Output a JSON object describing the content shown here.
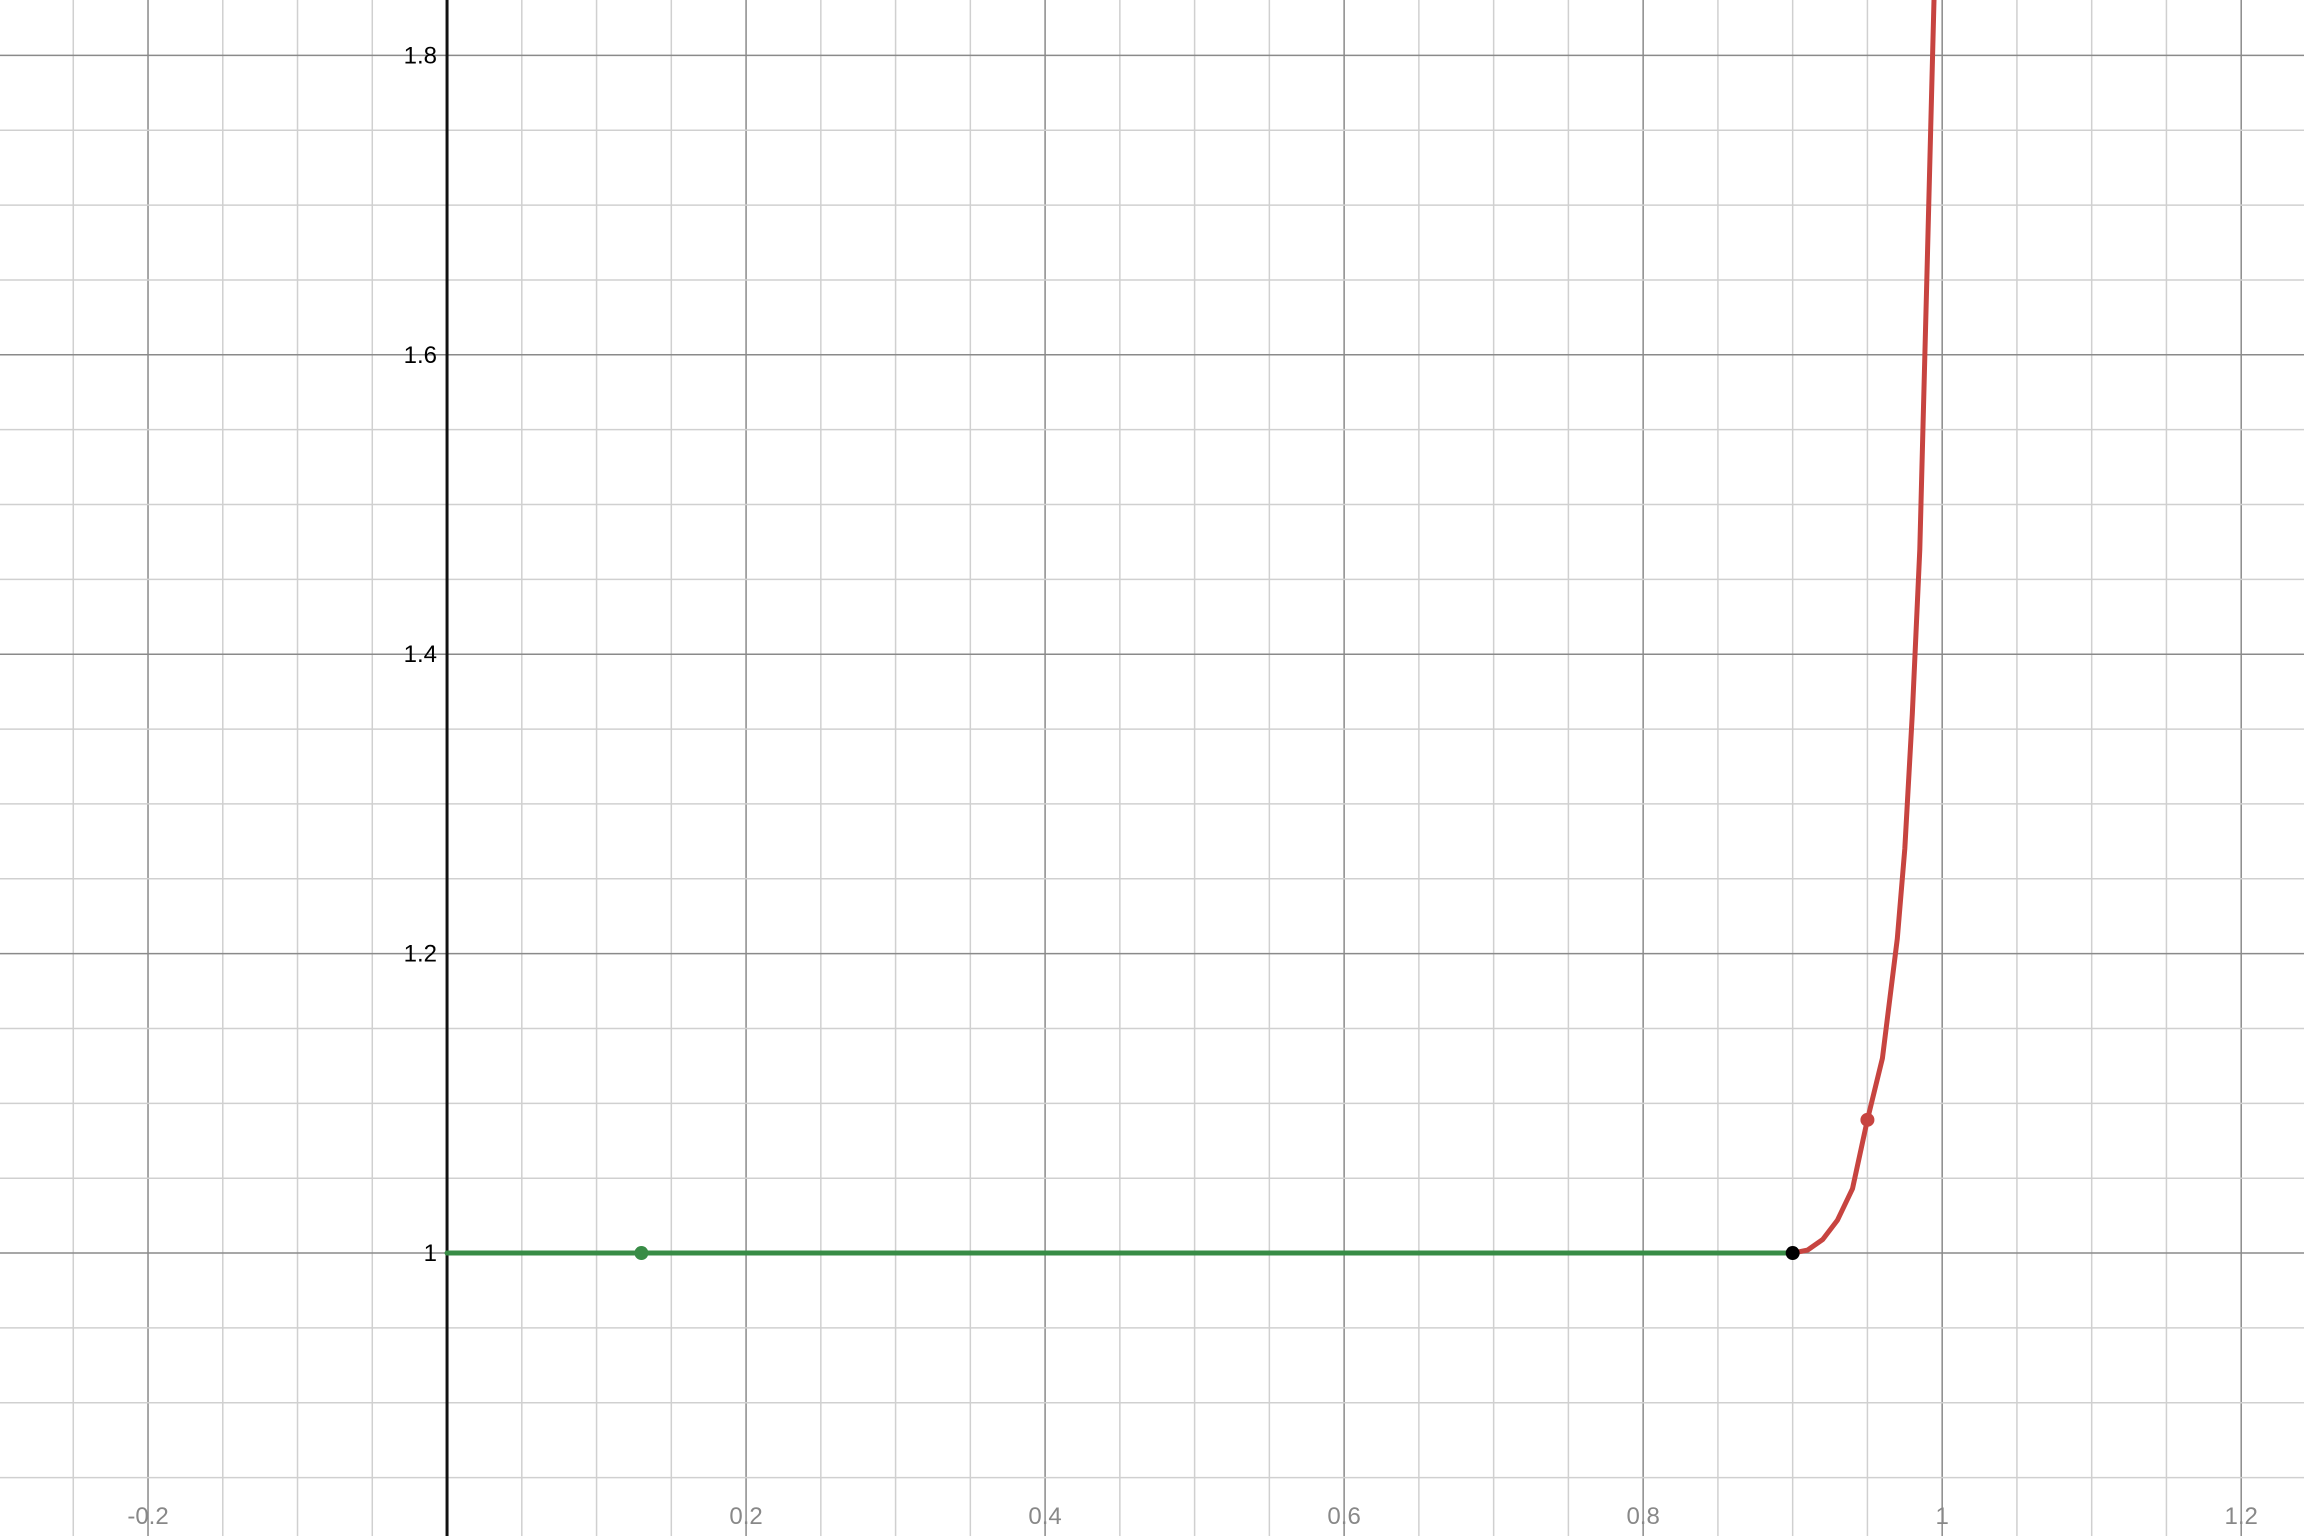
{
  "chart_data": {
    "type": "line",
    "title": "",
    "xlabel": "",
    "ylabel": "",
    "xlim": [
      -0.299,
      1.242
    ],
    "ylim": [
      0.811,
      1.837
    ],
    "grid": true,
    "grid_major_step": 0.2,
    "grid_minor_step": 0.05,
    "x_ticks": [
      -0.2,
      0.2,
      0.4,
      0.6,
      0.8,
      1,
      1.2
    ],
    "x_tick_labels": [
      "-0.2",
      "0.2",
      "0.4",
      "0.6",
      "0.8",
      "1",
      "1.2"
    ],
    "y_ticks": [
      1,
      1.2,
      1.4,
      1.6,
      1.8
    ],
    "y_tick_labels": [
      "1",
      "1.2",
      "1.4",
      "1.6",
      "1.8"
    ],
    "series": [
      {
        "color": "#388c46",
        "x": [
          0,
          0.9
        ],
        "y": [
          1,
          1
        ]
      },
      {
        "color": "#c74440",
        "x": [
          0.9,
          0.91,
          0.92,
          0.93,
          0.94,
          0.95,
          0.96,
          0.97,
          0.975,
          0.98,
          0.985,
          0.99,
          0.9945
        ],
        "y": [
          1,
          1.002,
          1.009,
          1.022,
          1.043,
          1.089,
          1.13,
          1.21,
          1.27,
          1.36,
          1.47,
          1.66,
          1.837
        ]
      }
    ],
    "points": [
      {
        "x": 0.13,
        "y": 1,
        "color": "#388c46"
      },
      {
        "x": 0.9,
        "y": 1,
        "color": "#000000"
      },
      {
        "x": 0.95,
        "y": 1.089,
        "color": "#c74440"
      }
    ]
  }
}
